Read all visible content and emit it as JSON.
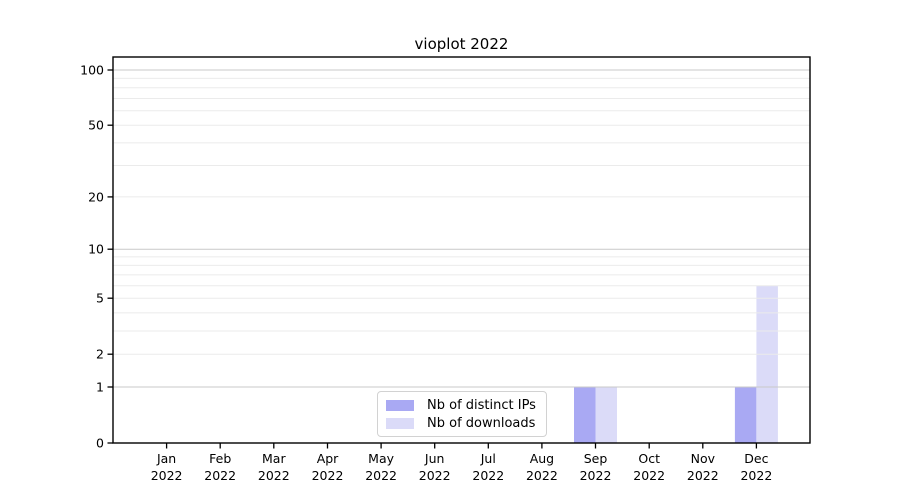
{
  "chart_data": {
    "type": "bar",
    "title": "vioplot 2022",
    "categories": [
      "Jan",
      "Feb",
      "Mar",
      "Apr",
      "May",
      "Jun",
      "Jul",
      "Aug",
      "Sep",
      "Oct",
      "Nov",
      "Dec"
    ],
    "category_year": "2022",
    "series": [
      {
        "name": "Nb of distinct IPs",
        "color": "#a9a9f3",
        "values": [
          0,
          0,
          0,
          0,
          0,
          0,
          0,
          0,
          1,
          0,
          0,
          1
        ]
      },
      {
        "name": "Nb of downloads",
        "color": "#dbdbf8",
        "values": [
          0,
          0,
          0,
          0,
          0,
          0,
          0,
          0,
          1,
          0,
          0,
          6
        ]
      }
    ],
    "xlabel": "",
    "ylabel": "",
    "yscale": "log1p",
    "yticks": [
      0,
      1,
      2,
      5,
      10,
      20,
      50,
      100
    ],
    "ylim": [
      0,
      118
    ],
    "grid": {
      "on": true,
      "major_lines": [
        1,
        10,
        100
      ],
      "minor_lines": [
        2,
        3,
        4,
        5,
        6,
        7,
        8,
        9,
        20,
        30,
        40,
        50,
        60,
        70,
        80,
        90
      ]
    },
    "legend_position": "inside-bottom-center",
    "colors": {
      "grid_major": "#c9c9c9",
      "grid_minor": "#ebebeb",
      "axis": "#000000",
      "background": "#ffffff"
    }
  }
}
